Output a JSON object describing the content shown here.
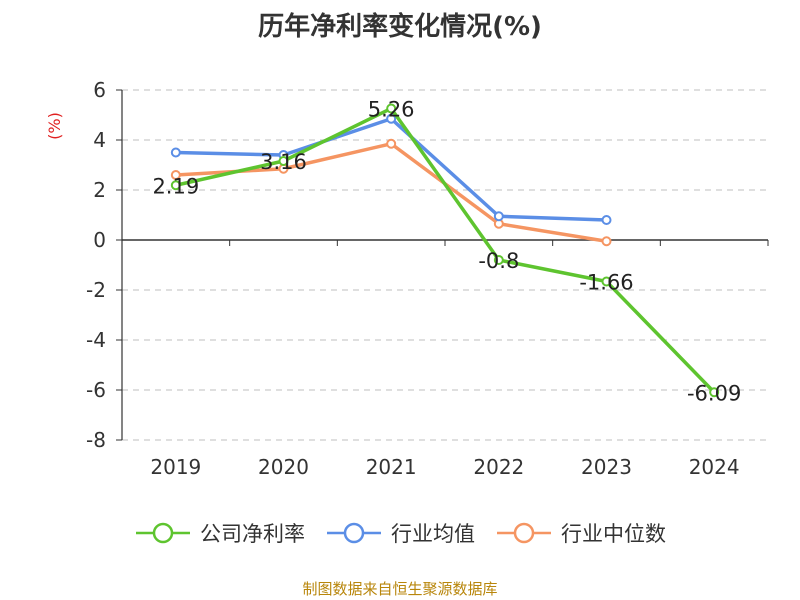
{
  "chart_data": {
    "type": "line",
    "title": "历年净利率变化情况(%)",
    "ylabel": "(%)",
    "xlabel": "",
    "categories": [
      "2019",
      "2020",
      "2021",
      "2022",
      "2023",
      "2024"
    ],
    "ylim": [
      -8,
      6
    ],
    "yticks": [
      "6",
      "4",
      "2",
      "0",
      "-2",
      "-4",
      "-6",
      "-8"
    ],
    "grid": true,
    "legend_position": "bottom",
    "series": [
      {
        "name": "公司净利率",
        "color": "#5ec42f",
        "values": [
          2.19,
          3.16,
          5.26,
          -0.8,
          -1.66,
          -6.09
        ],
        "data_labels": [
          "2.19",
          "3.16",
          "5.26",
          "-0.8",
          "-1.66",
          "-6.09"
        ]
      },
      {
        "name": "行业均值",
        "color": "#5b8ee6",
        "values": [
          3.5,
          3.4,
          4.85,
          0.95,
          0.8,
          null
        ]
      },
      {
        "name": "行业中位数",
        "color": "#f59562",
        "values": [
          2.6,
          2.85,
          3.85,
          0.65,
          -0.05,
          null
        ]
      }
    ]
  },
  "source": "制图数据来自恒生聚源数据库"
}
